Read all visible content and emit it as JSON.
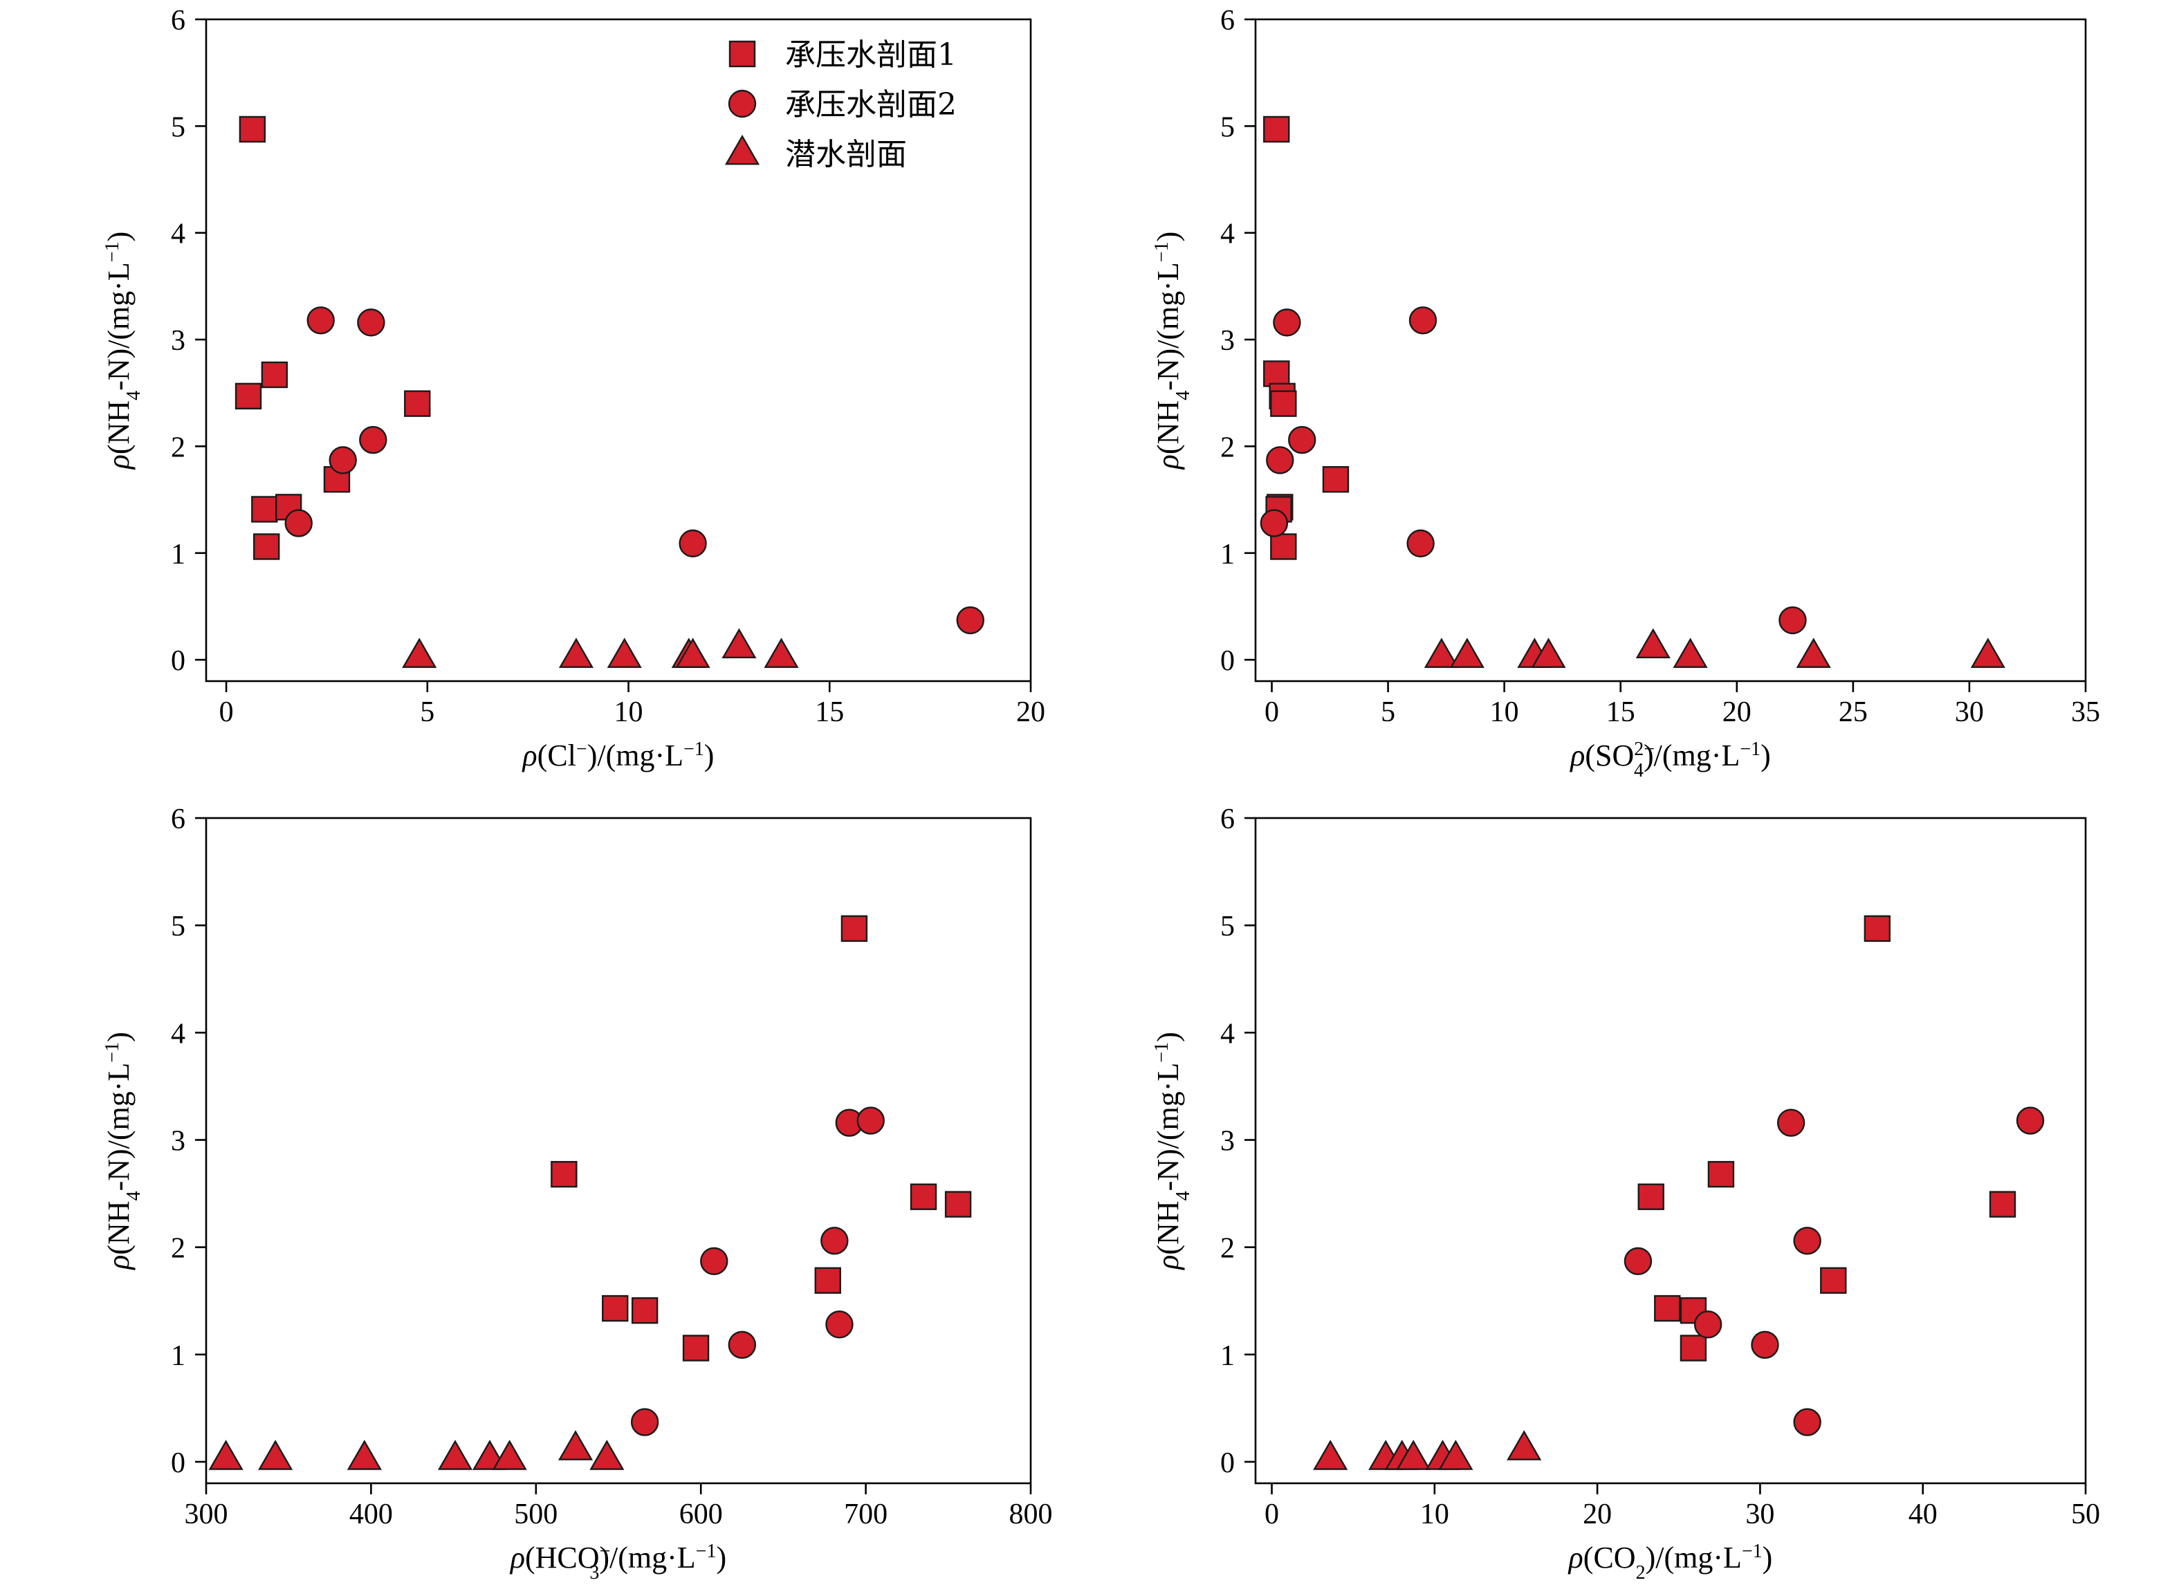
{
  "colors": {
    "marker_fill": "#d21f2b",
    "marker_stroke": "#1a1a1a",
    "axis": "#000000"
  },
  "legend": {
    "placement": "top-right of first panel",
    "items": [
      {
        "label": "承压水剖面1",
        "shape": "square"
      },
      {
        "label": "承压水剖面2",
        "shape": "circle"
      },
      {
        "label": "潜水剖面",
        "shape": "triangle"
      }
    ]
  },
  "chart_data": [
    {
      "type": "scatter",
      "xlabel": {
        "prefix": "ρ",
        "body": "(Cl",
        "sup": "−",
        "suffix": ")/(mg·L",
        "unit_sup": "−1",
        "end": ")"
      },
      "ylabel": {
        "prefix": "ρ",
        "body": "(NH",
        "sub": "4",
        "suffix": "-N)/(mg·L",
        "unit_sup": "−1",
        "end": ")"
      },
      "xlim": [
        -0.5,
        20
      ],
      "ylim": [
        -0.2,
        6
      ],
      "xticks": [
        0,
        5,
        10,
        15,
        20
      ],
      "yticks": [
        0,
        1,
        2,
        3,
        4,
        5,
        6
      ],
      "series": [
        {
          "name": "承压水剖面1",
          "marker": "square",
          "points": [
            [
              0.65,
              4.97
            ],
            [
              0.55,
              2.47
            ],
            [
              1.2,
              2.67
            ],
            [
              0.95,
              1.41
            ],
            [
              1.55,
              1.43
            ],
            [
              1.0,
              1.06
            ],
            [
              2.75,
              1.69
            ],
            [
              4.75,
              2.4
            ]
          ]
        },
        {
          "name": "承压水剖面2",
          "marker": "circle",
          "points": [
            [
              2.35,
              3.18
            ],
            [
              3.6,
              3.16
            ],
            [
              2.9,
              1.87
            ],
            [
              3.65,
              2.06
            ],
            [
              1.8,
              1.28
            ],
            [
              11.6,
              1.09
            ],
            [
              18.5,
              0.37
            ]
          ]
        },
        {
          "name": "潜水剖面",
          "marker": "triangle",
          "points": [
            [
              4.8,
              0.03
            ],
            [
              8.7,
              0.03
            ],
            [
              9.9,
              0.03
            ],
            [
              11.5,
              0.03
            ],
            [
              11.6,
              0.03
            ],
            [
              12.75,
              0.12
            ],
            [
              13.8,
              0.03
            ]
          ]
        }
      ]
    },
    {
      "type": "scatter",
      "xlabel": {
        "prefix": "ρ",
        "body": "(SO",
        "sub": "4",
        "sup": "2−",
        "suffix": ")/(mg·L",
        "unit_sup": "−1",
        "end": ")"
      },
      "ylabel": {
        "prefix": "ρ",
        "body": "(NH",
        "sub": "4",
        "suffix": "-N)/(mg·L",
        "unit_sup": "−1",
        "end": ")"
      },
      "xlim": [
        -0.7,
        35
      ],
      "ylim": [
        -0.2,
        6
      ],
      "xticks": [
        0,
        5,
        10,
        15,
        20,
        25,
        30,
        35
      ],
      "yticks": [
        0,
        1,
        2,
        3,
        4,
        5,
        6
      ],
      "series": [
        {
          "name": "承压水剖面1",
          "marker": "square",
          "points": [
            [
              0.2,
              4.97
            ],
            [
              0.2,
              2.68
            ],
            [
              0.45,
              2.47
            ],
            [
              0.5,
              2.4
            ],
            [
              0.35,
              1.43
            ],
            [
              0.3,
              1.41
            ],
            [
              0.5,
              1.06
            ],
            [
              2.75,
              1.69
            ]
          ]
        },
        {
          "name": "承压水剖面2",
          "marker": "circle",
          "points": [
            [
              0.65,
              3.16
            ],
            [
              6.5,
              3.18
            ],
            [
              0.35,
              1.87
            ],
            [
              1.3,
              2.06
            ],
            [
              0.1,
              1.28
            ],
            [
              6.4,
              1.09
            ],
            [
              22.4,
              0.37
            ]
          ]
        },
        {
          "name": "潜水剖面",
          "marker": "triangle",
          "points": [
            [
              7.3,
              0.03
            ],
            [
              8.4,
              0.03
            ],
            [
              11.3,
              0.03
            ],
            [
              11.9,
              0.03
            ],
            [
              16.4,
              0.12
            ],
            [
              18.0,
              0.03
            ],
            [
              23.3,
              0.03
            ],
            [
              30.8,
              0.03
            ]
          ]
        }
      ]
    },
    {
      "type": "scatter",
      "xlabel": {
        "prefix": "ρ",
        "body": "(HCO",
        "sub": "3",
        "sup": "−",
        "suffix": ")/(mg·L",
        "unit_sup": "−1",
        "end": ")"
      },
      "ylabel": {
        "prefix": "ρ",
        "body": "(NH",
        "sub": "4",
        "suffix": "-N)/(mg·L",
        "unit_sup": "−1",
        "end": ")"
      },
      "xlim": [
        300,
        800
      ],
      "ylim": [
        -0.2,
        6
      ],
      "xticks": [
        300,
        400,
        500,
        600,
        700,
        800
      ],
      "yticks": [
        0,
        1,
        2,
        3,
        4,
        5,
        6
      ],
      "series": [
        {
          "name": "承压水剖面1",
          "marker": "square",
          "points": [
            [
              693,
              4.97
            ],
            [
              517,
              2.68
            ],
            [
              735,
              2.47
            ],
            [
              756,
              2.4
            ],
            [
              677,
              1.69
            ],
            [
              548,
              1.43
            ],
            [
              566,
              1.41
            ],
            [
              597,
              1.06
            ]
          ]
        },
        {
          "name": "承压水剖面2",
          "marker": "circle",
          "points": [
            [
              690,
              3.16
            ],
            [
              703,
              3.18
            ],
            [
              608,
              1.87
            ],
            [
              681,
              2.06
            ],
            [
              684,
              1.28
            ],
            [
              625,
              1.09
            ],
            [
              566,
              0.37
            ]
          ]
        },
        {
          "name": "潜水剖面",
          "marker": "triangle",
          "points": [
            [
              312,
              0.03
            ],
            [
              342,
              0.03
            ],
            [
              396,
              0.03
            ],
            [
              451,
              0.03
            ],
            [
              472,
              0.03
            ],
            [
              484,
              0.03
            ],
            [
              524,
              0.12
            ],
            [
              543,
              0.03
            ]
          ]
        }
      ]
    },
    {
      "type": "scatter",
      "xlabel": {
        "prefix": "ρ",
        "body": "(CO",
        "sub": "2",
        "suffix": ")/(mg·L",
        "unit_sup": "−1",
        "end": ")"
      },
      "ylabel": {
        "prefix": "ρ",
        "body": "(NH",
        "sub": "4",
        "suffix": "-N)/(mg·L",
        "unit_sup": "−1",
        "end": ")"
      },
      "xlim": [
        -1,
        50
      ],
      "ylim": [
        -0.2,
        6
      ],
      "xticks": [
        0,
        10,
        20,
        30,
        40,
        50
      ],
      "yticks": [
        0,
        1,
        2,
        3,
        4,
        5,
        6
      ],
      "series": [
        {
          "name": "承压水剖面1",
          "marker": "square",
          "points": [
            [
              37.2,
              4.97
            ],
            [
              23.3,
              2.47
            ],
            [
              27.6,
              2.68
            ],
            [
              44.9,
              2.4
            ],
            [
              34.5,
              1.69
            ],
            [
              24.3,
              1.43
            ],
            [
              25.9,
              1.41
            ],
            [
              25.9,
              1.06
            ]
          ]
        },
        {
          "name": "承压水剖面2",
          "marker": "circle",
          "points": [
            [
              31.9,
              3.16
            ],
            [
              46.6,
              3.18
            ],
            [
              22.5,
              1.87
            ],
            [
              32.9,
              2.06
            ],
            [
              26.8,
              1.28
            ],
            [
              30.3,
              1.09
            ],
            [
              32.9,
              0.37
            ]
          ]
        },
        {
          "name": "潜水剖面",
          "marker": "triangle",
          "points": [
            [
              3.6,
              0.03
            ],
            [
              7.0,
              0.03
            ],
            [
              8.0,
              0.03
            ],
            [
              8.7,
              0.03
            ],
            [
              10.5,
              0.03
            ],
            [
              11.3,
              0.03
            ],
            [
              15.5,
              0.12
            ]
          ]
        }
      ]
    }
  ]
}
